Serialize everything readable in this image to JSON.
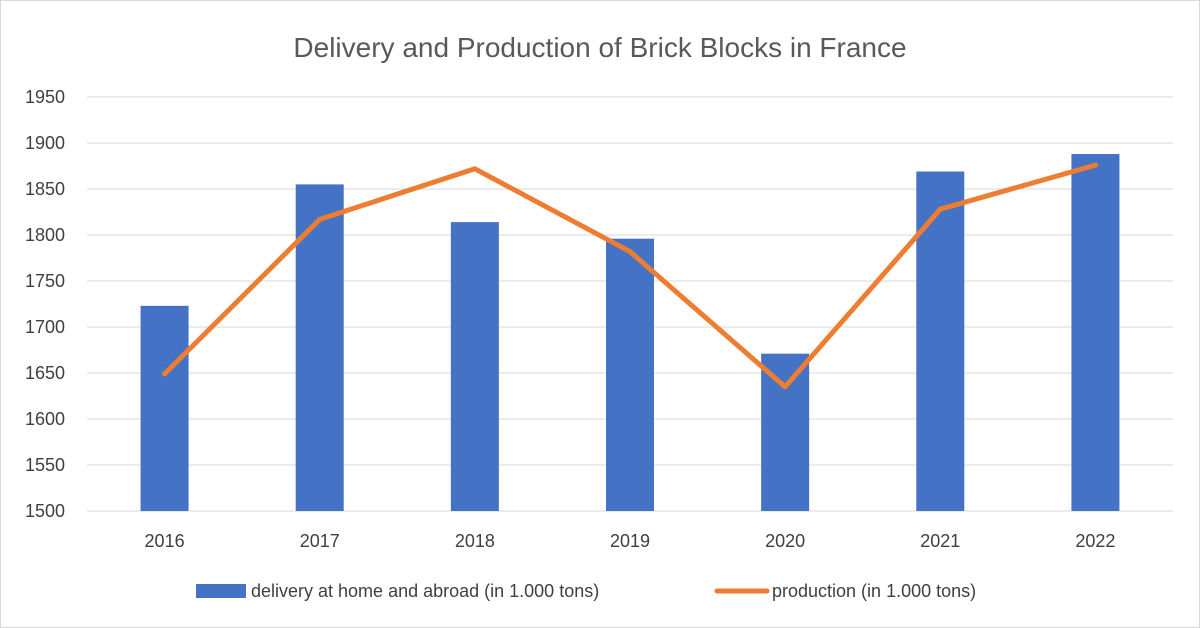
{
  "chart_data": {
    "type": "bar",
    "title": "Delivery and Production of Brick Blocks in France",
    "xlabel": "",
    "ylabel": "",
    "categories": [
      "2016",
      "2017",
      "2018",
      "2019",
      "2020",
      "2021",
      "2022"
    ],
    "ylim": [
      1500,
      1950
    ],
    "yticks": [
      1500,
      1550,
      1600,
      1650,
      1700,
      1750,
      1800,
      1850,
      1900,
      1950
    ],
    "grid": true,
    "legend_position": "bottom",
    "series": [
      {
        "name": "delivery at home and abroad (in 1.000 tons)",
        "type": "bar",
        "color": "#4472C4",
        "values": [
          1723,
          1855,
          1814,
          1796,
          1671,
          1869,
          1888
        ]
      },
      {
        "name": "production (in 1.000 tons)",
        "type": "line",
        "color": "#ED7D31",
        "values": [
          1649,
          1817,
          1872,
          1782,
          1635,
          1828,
          1876
        ]
      }
    ]
  }
}
